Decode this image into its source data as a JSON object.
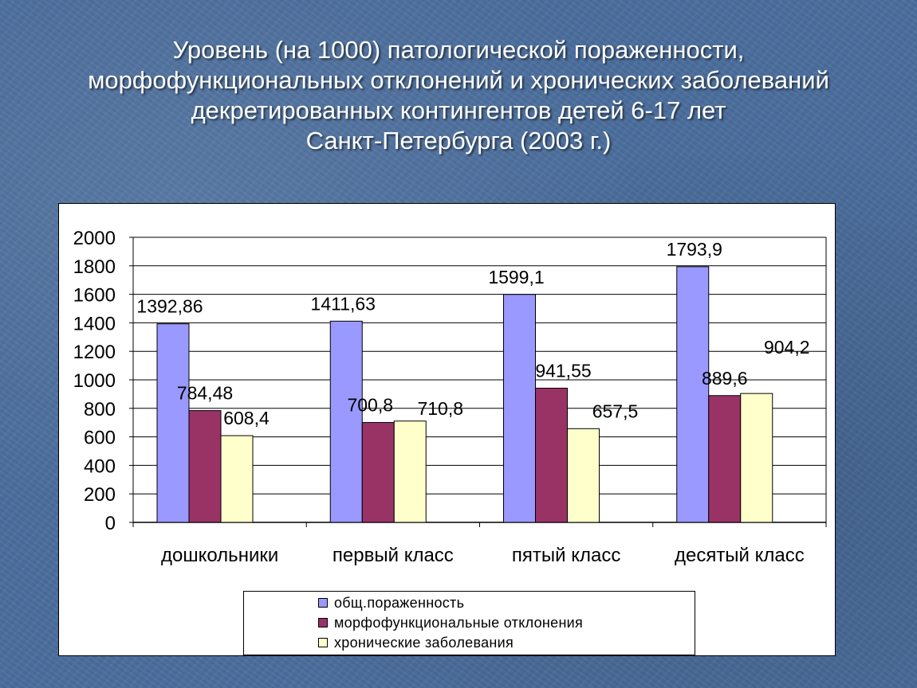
{
  "title_lines": [
    "Уровень (на 1000) патологической пораженности,",
    "морфофункциональных отклонений и хронических заболеваний",
    "декретированных контингентов детей 6-17 лет",
    "Санкт-Петербурга (2003 г.)"
  ],
  "chart_data": {
    "type": "bar",
    "categories": [
      "дошкольники",
      "первый класс",
      "пятый класс",
      "десятый класс"
    ],
    "series": [
      {
        "name": "общ.пораженность",
        "color": "#9999ff",
        "values": [
          1392.86,
          1411.63,
          1599.1,
          1793.9
        ],
        "labels": [
          "1392,86",
          "1411,63",
          "1599,1",
          "1793,9"
        ]
      },
      {
        "name": "морфофункциональные отклонения",
        "color": "#993366",
        "values": [
          784.48,
          700.8,
          941.55,
          889.6
        ],
        "labels": [
          "784,48",
          "700,8",
          "941,55",
          "889,6"
        ]
      },
      {
        "name": "хронические заболевания",
        "color": "#ffffcc",
        "values": [
          608.4,
          710.8,
          657.5,
          904.2
        ],
        "labels": [
          "608,4",
          "710,8",
          "657,5",
          "904,2"
        ]
      }
    ],
    "ylim": [
      0,
      2000
    ],
    "yticks": [
      0,
      200,
      400,
      600,
      800,
      1000,
      1200,
      1400,
      1600,
      1800,
      2000
    ],
    "grid": true,
    "legend_position": "bottom"
  }
}
